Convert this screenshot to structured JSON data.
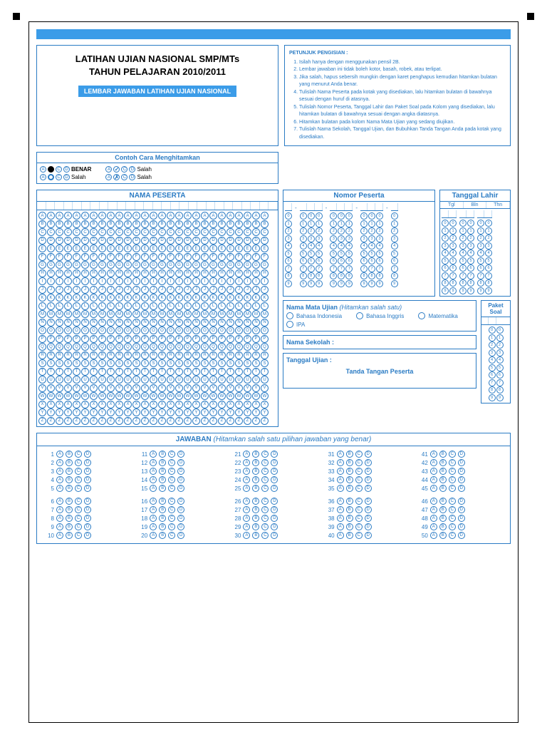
{
  "title_l1": "LATIHAN UJIAN NASIONAL SMP/MTs",
  "title_l2": "TAHUN PELAJARAN 2010/2011",
  "banner": "LEMBAR JAWABAN LATIHAN UJIAN NASIONAL",
  "instr_title": "PETUNJUK PENGISIAN :",
  "instr": [
    "Isilah hanya dengan menggunakan pensil 2B.",
    "Lembar jawaban ini tidak boleh kotor, basah, robek, atau terlipat.",
    "Jika salah, hapus sebersih mungkin dengan karet penghapus kemudian hitamkan bulatan yang menurut Anda benar.",
    "Tulislah Nama Peserta pada kotak yang disediakan, lalu hitamkan bulatan di bawahnya sesuai dengan huruf di atasnya.",
    "Tulislah Nomor Peserta, Tanggal Lahir dan Paket Soal pada Kolom yang disediakan, lalu hitamkan bulatan di bawahnya sesuai dengan angka diatasnya.",
    "Hitamkan bulatan pada kolom Nama Mata Ujian yang sedang diujikan.",
    "Tulislah Nama Sekolah, Tanggal Ujian, dan Bubuhkan Tanda Tangan Anda pada kotak yang disediakan."
  ],
  "ex_title": "Contoh Cara Menghitamkan",
  "benar": "BENAR",
  "salah": "Salah",
  "nama_t": "NAMA PESERTA",
  "nomor_t": "Nomor Peserta",
  "tgl_t": "Tanggal Lahir",
  "tgl_h": [
    "Tgl",
    "Bln",
    "Thn"
  ],
  "mata_t": "Nama Mata Ujian",
  "mata_i": "(Hitamkan salah satu)",
  "mata_o": [
    "Bahasa Indonesia",
    "Bahasa Inggris",
    "Matematika",
    "IPA"
  ],
  "sekolah": "Nama Sekolah :",
  "tglu": "Tanggal Ujian :",
  "ttd": "Tanda Tangan Peserta",
  "paket_t": "Paket Soal",
  "jawab_t": "JAWABAN",
  "jawab_i": "(Hitamkan salah satu pilihan jawaban yang benar)",
  "letters": [
    "A",
    "B",
    "C",
    "D",
    "E",
    "F",
    "G",
    "H",
    "I",
    "J",
    "K",
    "L",
    "M",
    "N",
    "O",
    "P",
    "Q",
    "R",
    "S",
    "T",
    "U",
    "V",
    "W",
    "X",
    "Y",
    "Z"
  ],
  "digits": [
    "0",
    "1",
    "2",
    "3",
    "4",
    "5",
    "6",
    "7",
    "8",
    "9"
  ],
  "opts": [
    "A",
    "B",
    "C",
    "D"
  ],
  "colors": {
    "blue": "#2a7bc4",
    "lblue": "#3b9ce8"
  }
}
